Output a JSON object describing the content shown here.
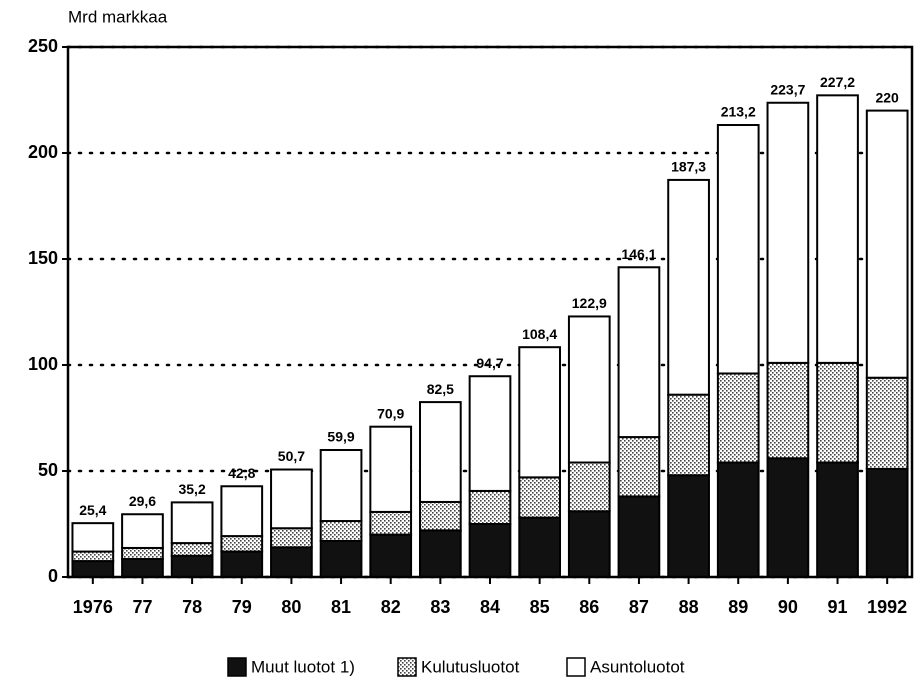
{
  "chart_data": {
    "type": "stacked_bar",
    "y_axis_label": "Mrd markkaa",
    "categories": [
      "1976",
      "77",
      "78",
      "79",
      "80",
      "81",
      "82",
      "83",
      "84",
      "85",
      "86",
      "87",
      "88",
      "89",
      "90",
      "91",
      "1992"
    ],
    "series": [
      {
        "name": "Muut luotot 1)",
        "color": "#111111",
        "values": [
          7.5,
          8.5,
          10,
          12,
          14,
          17,
          20,
          22,
          25,
          28,
          31,
          38,
          48,
          54,
          56,
          54,
          51
        ]
      },
      {
        "name": "Kulutusluotot",
        "color": "#d0d0d0",
        "pattern": "dots",
        "values": [
          4.5,
          5.2,
          6,
          7.3,
          9,
          9.4,
          10.7,
          13.4,
          15.6,
          19,
          23,
          28,
          38,
          42,
          45,
          47,
          43
        ]
      },
      {
        "name": "Asuntoluotot",
        "color": "#ffffff",
        "values": [
          13.4,
          15.9,
          19.2,
          23.5,
          27.7,
          33.5,
          40.2,
          47.1,
          54.1,
          61.4,
          68.9,
          80.1,
          101.3,
          117.2,
          122.7,
          126.2,
          126
        ]
      }
    ],
    "totals": [
      25.4,
      29.6,
      35.2,
      42.8,
      50.7,
      59.9,
      70.9,
      82.5,
      94.7,
      108.4,
      122.9,
      146.1,
      187.3,
      213.2,
      223.7,
      227.2,
      220
    ],
    "total_labels": [
      "25,4",
      "29,6",
      "35,2",
      "42,8",
      "50,7",
      "59,9",
      "70,9",
      "82,5",
      "94,7",
      "108,4",
      "122,9",
      "146,1",
      "187,3",
      "213,2",
      "223,7",
      "227,2",
      "220"
    ],
    "ylim": [
      0,
      250
    ],
    "yticks": [
      0,
      50,
      100,
      150,
      200,
      250
    ],
    "grid": true
  }
}
